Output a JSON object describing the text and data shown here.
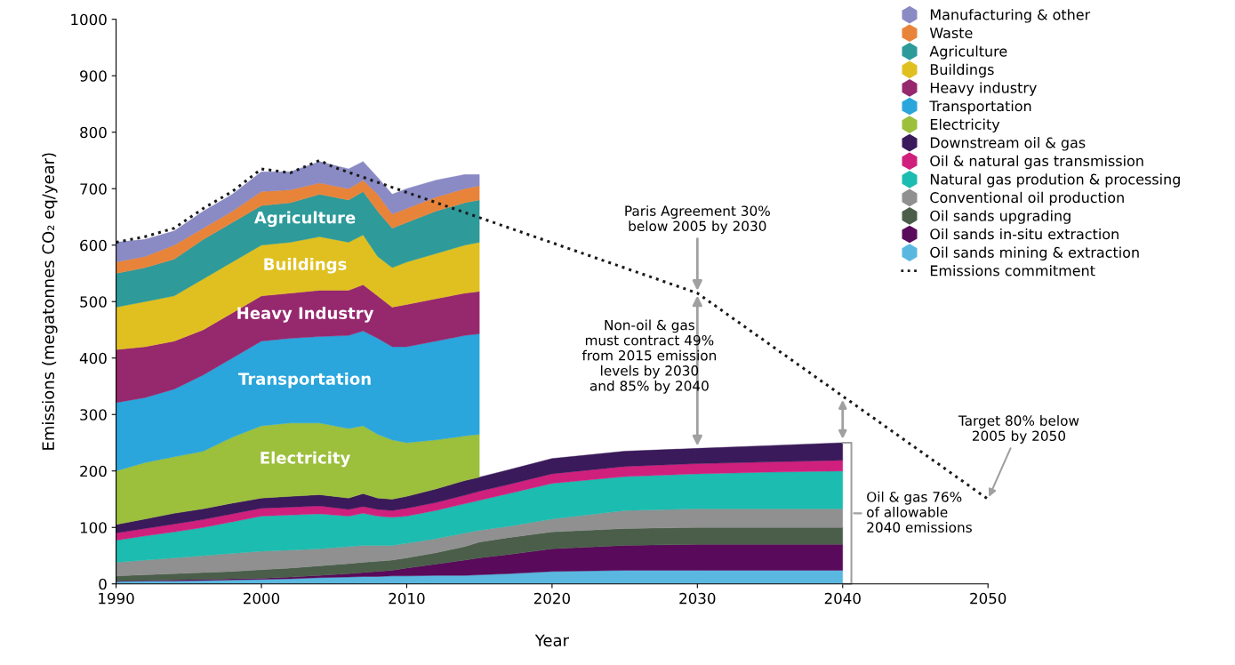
{
  "chart_data": {
    "type": "area",
    "stacked": true,
    "xlabel": "Year",
    "ylabel": "Emissions (megatonnes CO₂ eq/year)",
    "xlim": [
      1990,
      2050
    ],
    "xticks": [
      1990,
      2000,
      2010,
      2020,
      2030,
      2040,
      2050
    ],
    "ylim": [
      0,
      1000
    ],
    "yticks": [
      0,
      100,
      200,
      300,
      400,
      500,
      600,
      700,
      800,
      900,
      1000
    ],
    "grid": false,
    "legend": "top right",
    "series": [
      {
        "name": "Oil sands mining & extraction",
        "color": "#5ab8e0",
        "x": [
          1990,
          1992,
          1994,
          1996,
          1998,
          2000,
          2002,
          2004,
          2006,
          2007,
          2008,
          2009,
          2010,
          2012,
          2014,
          2015,
          2017,
          2020,
          2025,
          2030,
          2035,
          2040
        ],
        "values": [
          4,
          5,
          5,
          6,
          7,
          8,
          9,
          11,
          12,
          13,
          13,
          14,
          14,
          15,
          15,
          16,
          18,
          22,
          24,
          24,
          24,
          24
        ]
      },
      {
        "name": "Oil sands in-situ extraction",
        "color": "#5a0a5a",
        "x": [
          1990,
          1992,
          1994,
          1996,
          1998,
          2000,
          2002,
          2004,
          2006,
          2007,
          2008,
          2009,
          2010,
          2012,
          2014,
          2015,
          2017,
          2020,
          2025,
          2030,
          2035,
          2040
        ],
        "values": [
          1,
          1,
          2,
          2,
          2,
          2,
          3,
          4,
          6,
          7,
          9,
          10,
          14,
          20,
          27,
          30,
          34,
          40,
          44,
          46,
          46,
          46
        ]
      },
      {
        "name": "Oil sands upgrading",
        "color": "#4a5e4a",
        "x": [
          1990,
          1992,
          1994,
          1996,
          1998,
          2000,
          2002,
          2004,
          2006,
          2007,
          2008,
          2009,
          2010,
          2012,
          2014,
          2015,
          2017,
          2020,
          2025,
          2030,
          2035,
          2040
        ],
        "values": [
          9,
          10,
          11,
          12,
          13,
          15,
          16,
          17,
          18,
          18,
          18,
          18,
          18,
          20,
          24,
          28,
          30,
          30,
          30,
          30,
          30,
          30
        ]
      },
      {
        "name": "Conventional oil production",
        "color": "#909090",
        "x": [
          1990,
          1992,
          1994,
          1996,
          1998,
          2000,
          2002,
          2004,
          2006,
          2007,
          2008,
          2009,
          2010,
          2012,
          2014,
          2015,
          2017,
          2020,
          2025,
          2030,
          2035,
          2040
        ],
        "values": [
          24,
          26,
          28,
          30,
          32,
          33,
          32,
          30,
          30,
          30,
          28,
          26,
          26,
          25,
          24,
          21,
          20,
          23,
          32,
          33,
          33,
          33
        ]
      },
      {
        "name": "Natural gas prodution & processing",
        "color": "#1cbcb0",
        "x": [
          1990,
          1992,
          1994,
          1996,
          1998,
          2000,
          2002,
          2004,
          2006,
          2007,
          2008,
          2009,
          2010,
          2012,
          2014,
          2015,
          2017,
          2020,
          2025,
          2030,
          2035,
          2040
        ],
        "values": [
          39,
          43,
          46,
          50,
          56,
          62,
          62,
          62,
          54,
          57,
          52,
          50,
          48,
          50,
          52,
          53,
          58,
          63,
          60,
          62,
          65,
          67
        ]
      },
      {
        "name": "Oil & natural gas transmission",
        "color": "#d0207e",
        "x": [
          1990,
          1992,
          1994,
          1996,
          1998,
          2000,
          2002,
          2004,
          2006,
          2007,
          2008,
          2009,
          2010,
          2012,
          2014,
          2015,
          2017,
          2020,
          2025,
          2030,
          2035,
          2040
        ],
        "values": [
          13,
          13,
          14,
          14,
          14,
          14,
          14,
          14,
          12,
          12,
          12,
          12,
          14,
          14,
          15,
          16,
          16,
          17,
          18,
          18,
          18,
          19
        ]
      },
      {
        "name": "Downstream oil & gas",
        "color": "#3a1a5a",
        "x": [
          1990,
          1992,
          1994,
          1996,
          1998,
          2000,
          2002,
          2004,
          2006,
          2007,
          2008,
          2009,
          2010,
          2012,
          2014,
          2015,
          2017,
          2020,
          2025,
          2030,
          2035,
          2040
        ],
        "values": [
          15,
          17,
          19,
          19,
          19,
          18,
          19,
          20,
          20,
          23,
          20,
          20,
          21,
          24,
          26,
          25,
          26,
          27,
          27,
          27,
          29,
          31
        ]
      },
      {
        "name": "Electricity",
        "color": "#9cbf3c",
        "x": [
          1990,
          1992,
          1994,
          1996,
          1998,
          2000,
          2002,
          2004,
          2006,
          2007,
          2008,
          2009,
          2010,
          2012,
          2014,
          2015
        ],
        "values": [
          95,
          100,
          100,
          102,
          117,
          128,
          130,
          127,
          123,
          120,
          113,
          105,
          95,
          87,
          79,
          76
        ]
      },
      {
        "name": "Transportation",
        "color": "#2aa6dc",
        "x": [
          1990,
          1992,
          1994,
          1996,
          1998,
          2000,
          2002,
          2004,
          2006,
          2007,
          2008,
          2009,
          2010,
          2012,
          2014,
          2015
        ],
        "values": [
          121,
          115,
          120,
          135,
          140,
          150,
          150,
          153,
          165,
          168,
          170,
          165,
          170,
          175,
          178,
          178
        ]
      },
      {
        "name": "Heavy industry",
        "color": "#96286e",
        "x": [
          1990,
          1992,
          1994,
          1996,
          1998,
          2000,
          2002,
          2004,
          2006,
          2007,
          2008,
          2009,
          2010,
          2012,
          2014,
          2015
        ],
        "values": [
          94,
          90,
          85,
          80,
          80,
          80,
          80,
          82,
          80,
          82,
          75,
          70,
          75,
          75,
          75,
          75
        ]
      },
      {
        "name": "Buildings",
        "color": "#e0c020",
        "x": [
          1990,
          1992,
          1994,
          1996,
          1998,
          2000,
          2002,
          2004,
          2006,
          2007,
          2008,
          2009,
          2010,
          2012,
          2014,
          2015
        ],
        "values": [
          75,
          80,
          80,
          90,
          90,
          90,
          90,
          95,
          85,
          88,
          70,
          70,
          75,
          80,
          85,
          87
        ]
      },
      {
        "name": "Agriculture",
        "color": "#2e9a9a",
        "x": [
          1990,
          1992,
          1994,
          1996,
          1998,
          2000,
          2002,
          2004,
          2006,
          2007,
          2008,
          2009,
          2010,
          2012,
          2014,
          2015
        ],
        "values": [
          60,
          60,
          65,
          70,
          70,
          70,
          70,
          75,
          75,
          77,
          80,
          70,
          70,
          75,
          75,
          75
        ]
      },
      {
        "name": "Waste",
        "color": "#e8843a",
        "x": [
          1990,
          1992,
          1994,
          1996,
          1998,
          2000,
          2002,
          2004,
          2006,
          2007,
          2008,
          2009,
          2010,
          2012,
          2014,
          2015
        ],
        "values": [
          20,
          20,
          25,
          20,
          20,
          25,
          23,
          20,
          20,
          20,
          30,
          25,
          25,
          25,
          25,
          25
        ]
      },
      {
        "name": "Manufacturing & other",
        "color": "#8a8ac4",
        "x": [
          1990,
          1992,
          1994,
          1996,
          1998,
          2000,
          2002,
          2004,
          2006,
          2007,
          2008,
          2009,
          2010,
          2012,
          2014,
          2015
        ],
        "values": [
          35,
          30,
          25,
          30,
          30,
          35,
          32,
          38,
          35,
          33,
          30,
          35,
          35,
          30,
          25,
          20
        ]
      },
      {
        "name": "Emissions commitment",
        "type": "line",
        "line_style": "dotted",
        "color": "#1a1a1a",
        "x": [
          1990,
          1992,
          1994,
          1996,
          1998,
          2000,
          2002,
          2004,
          2005,
          2030,
          2050
        ],
        "values": [
          605,
          615,
          630,
          665,
          695,
          735,
          728,
          750,
          738,
          515,
          150
        ]
      }
    ],
    "annotations": [
      "Agriculture",
      "Buildings",
      "Heavy Industry",
      "Transportation",
      "Electricity",
      {
        "text": "Paris Agreement 30%\nbelow 2005 by 2030",
        "x": 2030,
        "y": 515
      },
      "Non-oil & gas\nmust contract 49%\nfrom 2015 emission\nlevels by 2030\nand 85% by 2040",
      {
        "text": "Target 80% below\n2005 by 2050",
        "x": 2050,
        "y": 150
      },
      {
        "text": "Oil & gas 76%\nof allowable\n2040 emissions",
        "x": 2040,
        "y": 125
      }
    ]
  }
}
